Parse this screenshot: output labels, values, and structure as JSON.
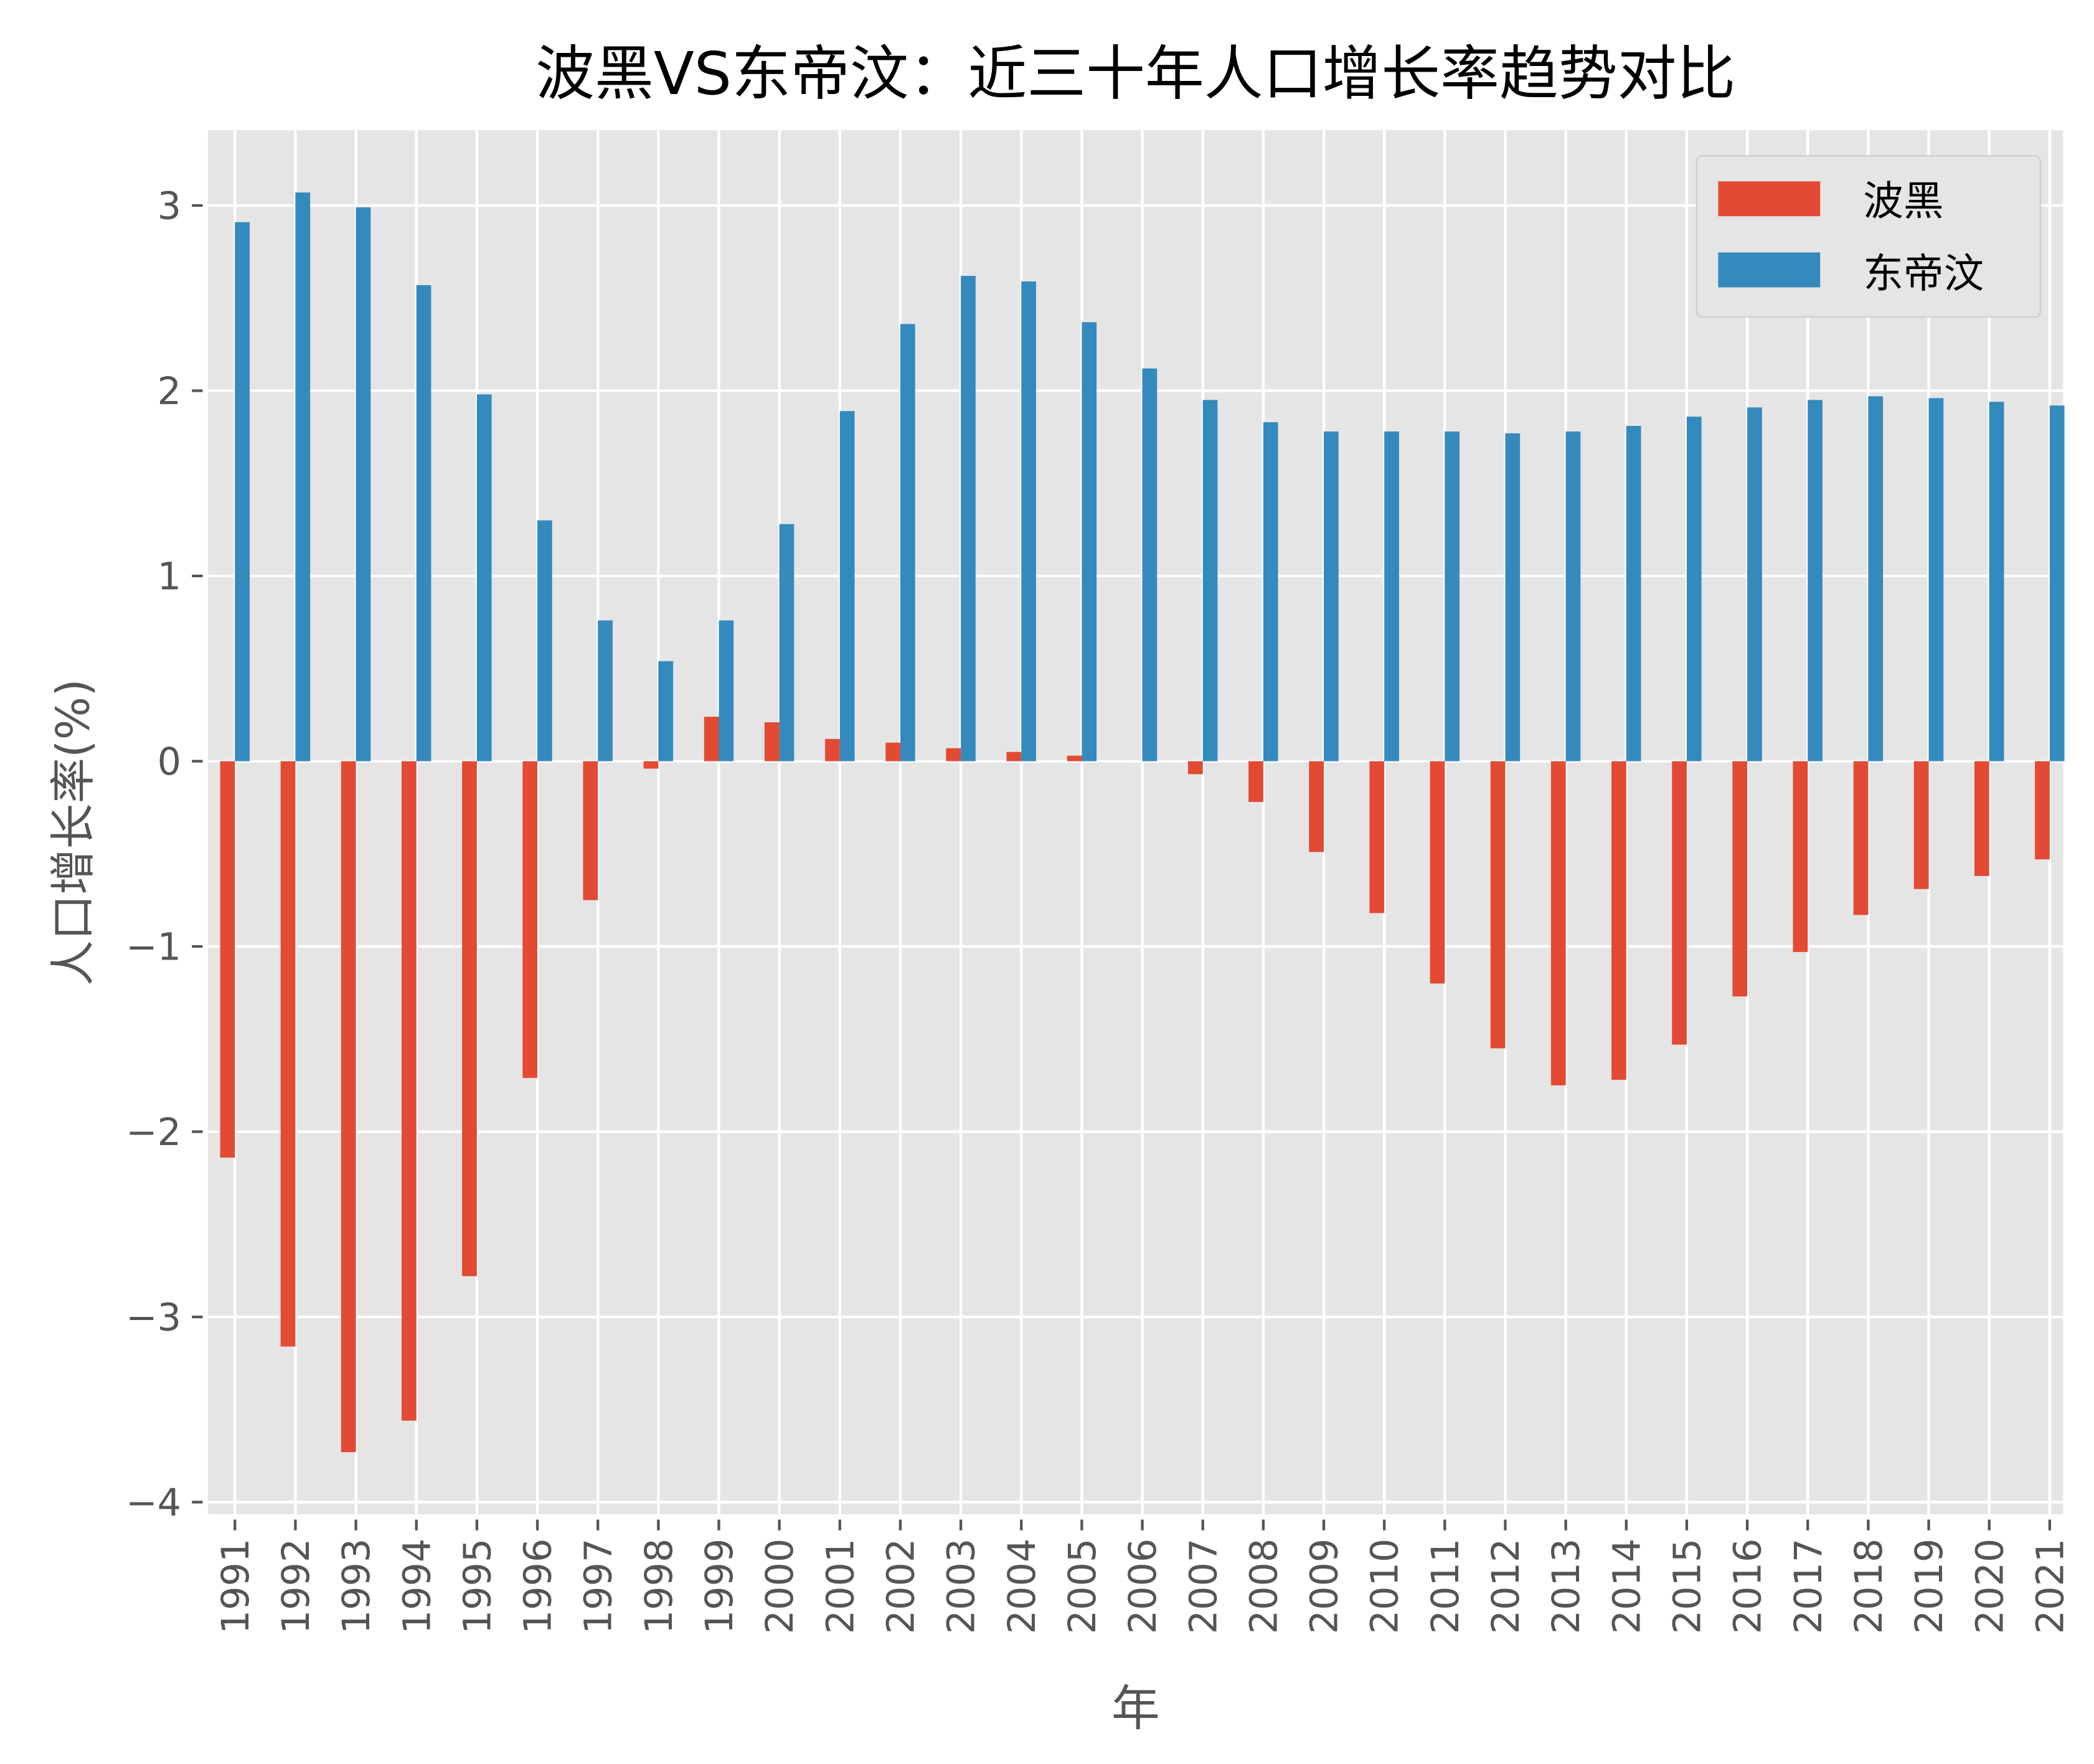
{
  "chart_data": {
    "type": "bar",
    "title": "波黑VS东帝汶：近三十年人口增长率趋势对比",
    "xlabel": "年",
    "ylabel": "人口增长率(%)",
    "ylim": [
      -4.0,
      3.4
    ],
    "yticks": [
      "3",
      "2",
      "1",
      "0",
      "−1",
      "−2",
      "−3",
      "−4"
    ],
    "grid": true,
    "legend_position": "top-right",
    "categories": [
      "1991",
      "1992",
      "1993",
      "1994",
      "1995",
      "1996",
      "1997",
      "1998",
      "1999",
      "2000",
      "2001",
      "2002",
      "2003",
      "2004",
      "2005",
      "2006",
      "2007",
      "2008",
      "2009",
      "2010",
      "2011",
      "2012",
      "2013",
      "2014",
      "2015",
      "2016",
      "2017",
      "2018",
      "2019",
      "2020",
      "2021"
    ],
    "series": [
      {
        "name": "波黑",
        "color": "#E24A33",
        "values": [
          -2.14,
          -3.16,
          -3.73,
          -3.56,
          -2.78,
          -1.71,
          -0.75,
          -0.04,
          0.24,
          0.21,
          0.12,
          0.1,
          0.07,
          0.05,
          0.03,
          0.0,
          -0.07,
          -0.22,
          -0.49,
          -0.82,
          -1.2,
          -1.55,
          -1.75,
          -1.72,
          -1.53,
          -1.27,
          -1.03,
          -0.83,
          -0.69,
          -0.62,
          -0.53
        ]
      },
      {
        "name": "东帝汶",
        "color": "#348ABD",
        "values": [
          2.91,
          3.07,
          2.99,
          2.57,
          1.98,
          1.3,
          0.76,
          0.54,
          0.76,
          1.28,
          1.89,
          2.36,
          2.62,
          2.59,
          2.37,
          2.12,
          1.95,
          1.83,
          1.78,
          1.78,
          1.78,
          1.77,
          1.78,
          1.81,
          1.86,
          1.91,
          1.95,
          1.97,
          1.96,
          1.94,
          1.92
        ]
      }
    ]
  }
}
